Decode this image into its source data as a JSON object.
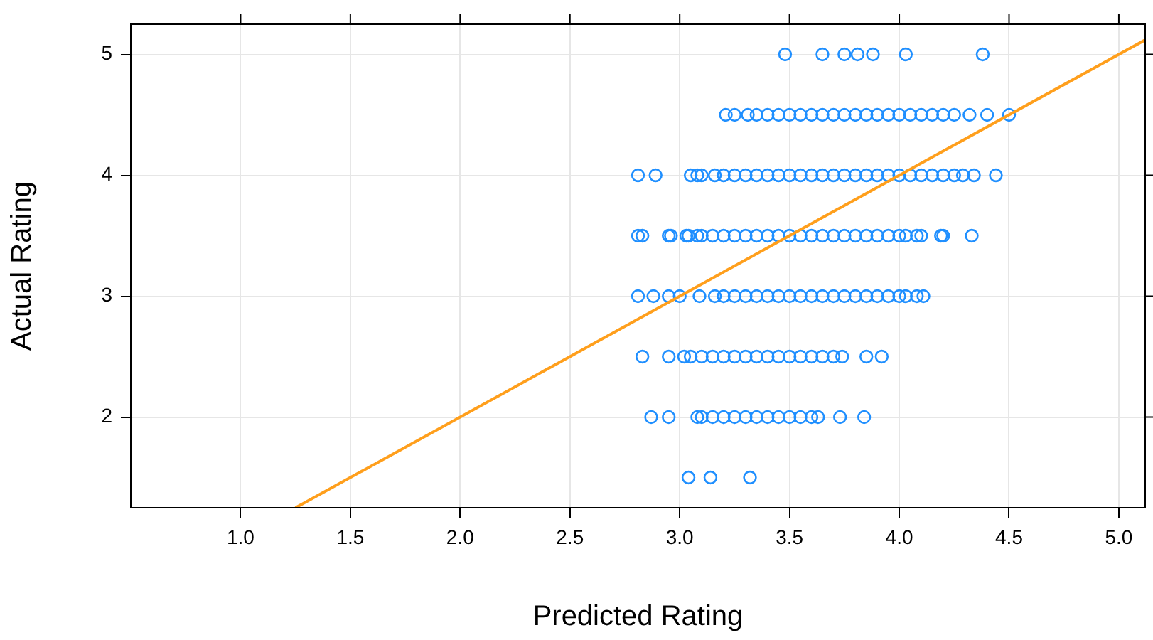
{
  "chart_data": {
    "type": "scatter",
    "xlabel": "Predicted Rating",
    "ylabel": "Actual Rating",
    "xlim": [
      0.5,
      5.12
    ],
    "ylim": [
      1.25,
      5.25
    ],
    "xticks": [
      {
        "value": 1,
        "label": "1.0"
      },
      {
        "value": 1.5,
        "label": "1.5"
      },
      {
        "value": 2,
        "label": "2.0"
      },
      {
        "value": 2.5,
        "label": "2.5"
      },
      {
        "value": 3,
        "label": "3.0"
      },
      {
        "value": 3.5,
        "label": "3.5"
      },
      {
        "value": 4,
        "label": "4.0"
      },
      {
        "value": 4.5,
        "label": "4.5"
      },
      {
        "value": 5,
        "label": "5.0"
      }
    ],
    "yticks": [
      2,
      3,
      4,
      5
    ],
    "grid": true,
    "legend": false,
    "marker": "circle",
    "series": [
      {
        "color": "#1f8fff",
        "x": [
          3.48,
          3.65,
          3.75,
          3.81,
          3.88,
          4.03,
          4.38
        ],
        "values": [
          5,
          5,
          5,
          5,
          5,
          5,
          5
        ]
      },
      {
        "color": "#1f8fff",
        "x": [
          3.21,
          3.25,
          3.31,
          3.35,
          3.4,
          3.45,
          3.5,
          3.55,
          3.6,
          3.65,
          3.7,
          3.75,
          3.8,
          3.85,
          3.9,
          3.95,
          4.0,
          4.05,
          4.1,
          4.15,
          4.2,
          4.25,
          4.32,
          4.4,
          4.5
        ],
        "values": [
          4.5,
          4.5,
          4.5,
          4.5,
          4.5,
          4.5,
          4.5,
          4.5,
          4.5,
          4.5,
          4.5,
          4.5,
          4.5,
          4.5,
          4.5,
          4.5,
          4.5,
          4.5,
          4.5,
          4.5,
          4.5,
          4.5,
          4.5,
          4.5,
          4.5
        ]
      },
      {
        "color": "#1f8fff",
        "x": [
          2.81,
          2.89,
          3.05,
          3.08,
          3.1,
          3.16,
          3.2,
          3.25,
          3.3,
          3.35,
          3.4,
          3.45,
          3.5,
          3.55,
          3.6,
          3.65,
          3.7,
          3.75,
          3.8,
          3.85,
          3.9,
          3.95,
          4.0,
          4.05,
          4.1,
          4.15,
          4.2,
          4.25,
          4.29,
          4.34,
          4.44
        ],
        "values": [
          4,
          4,
          4,
          4,
          4,
          4,
          4,
          4,
          4,
          4,
          4,
          4,
          4,
          4,
          4,
          4,
          4,
          4,
          4,
          4,
          4,
          4,
          4,
          4,
          4,
          4,
          4,
          4,
          4,
          4,
          4
        ]
      },
      {
        "color": "#1f8fff",
        "x": [
          2.81,
          2.83,
          2.95,
          2.96,
          3.03,
          3.04,
          3.08,
          3.1,
          3.15,
          3.2,
          3.25,
          3.3,
          3.35,
          3.4,
          3.45,
          3.5,
          3.55,
          3.6,
          3.65,
          3.7,
          3.75,
          3.8,
          3.85,
          3.9,
          3.95,
          4.0,
          4.03,
          4.08,
          4.1,
          4.19,
          4.2,
          4.33
        ],
        "values": [
          3.5,
          3.5,
          3.5,
          3.5,
          3.5,
          3.5,
          3.5,
          3.5,
          3.5,
          3.5,
          3.5,
          3.5,
          3.5,
          3.5,
          3.5,
          3.5,
          3.5,
          3.5,
          3.5,
          3.5,
          3.5,
          3.5,
          3.5,
          3.5,
          3.5,
          3.5,
          3.5,
          3.5,
          3.5,
          3.5,
          3.5,
          3.5
        ]
      },
      {
        "color": "#1f8fff",
        "x": [
          2.81,
          2.88,
          2.95,
          3.0,
          3.09,
          3.16,
          3.2,
          3.25,
          3.3,
          3.35,
          3.4,
          3.45,
          3.5,
          3.55,
          3.6,
          3.65,
          3.7,
          3.75,
          3.8,
          3.85,
          3.9,
          3.95,
          4.0,
          4.03,
          4.08,
          4.11
        ],
        "values": [
          3,
          3,
          3,
          3,
          3,
          3,
          3,
          3,
          3,
          3,
          3,
          3,
          3,
          3,
          3,
          3,
          3,
          3,
          3,
          3,
          3,
          3,
          3,
          3,
          3,
          3
        ]
      },
      {
        "color": "#1f8fff",
        "x": [
          2.83,
          2.95,
          3.02,
          3.05,
          3.1,
          3.15,
          3.2,
          3.25,
          3.3,
          3.35,
          3.4,
          3.45,
          3.5,
          3.55,
          3.6,
          3.65,
          3.7,
          3.74,
          3.85,
          3.92
        ],
        "values": [
          2.5,
          2.5,
          2.5,
          2.5,
          2.5,
          2.5,
          2.5,
          2.5,
          2.5,
          2.5,
          2.5,
          2.5,
          2.5,
          2.5,
          2.5,
          2.5,
          2.5,
          2.5,
          2.5,
          2.5
        ]
      },
      {
        "color": "#1f8fff",
        "x": [
          2.87,
          2.95,
          3.08,
          3.1,
          3.15,
          3.2,
          3.25,
          3.3,
          3.35,
          3.4,
          3.45,
          3.5,
          3.55,
          3.6,
          3.63,
          3.73,
          3.84
        ],
        "values": [
          2,
          2,
          2,
          2,
          2,
          2,
          2,
          2,
          2,
          2,
          2,
          2,
          2,
          2,
          2,
          2,
          2
        ]
      },
      {
        "color": "#1f8fff",
        "x": [
          3.04,
          3.14,
          3.32
        ],
        "values": [
          1.5,
          1.5,
          1.5
        ]
      },
      {
        "type": "line",
        "color": "#ff9f1c",
        "marker": "none",
        "x": [
          1.25,
          5.12
        ],
        "values": [
          1.25,
          5.12
        ]
      }
    ]
  }
}
